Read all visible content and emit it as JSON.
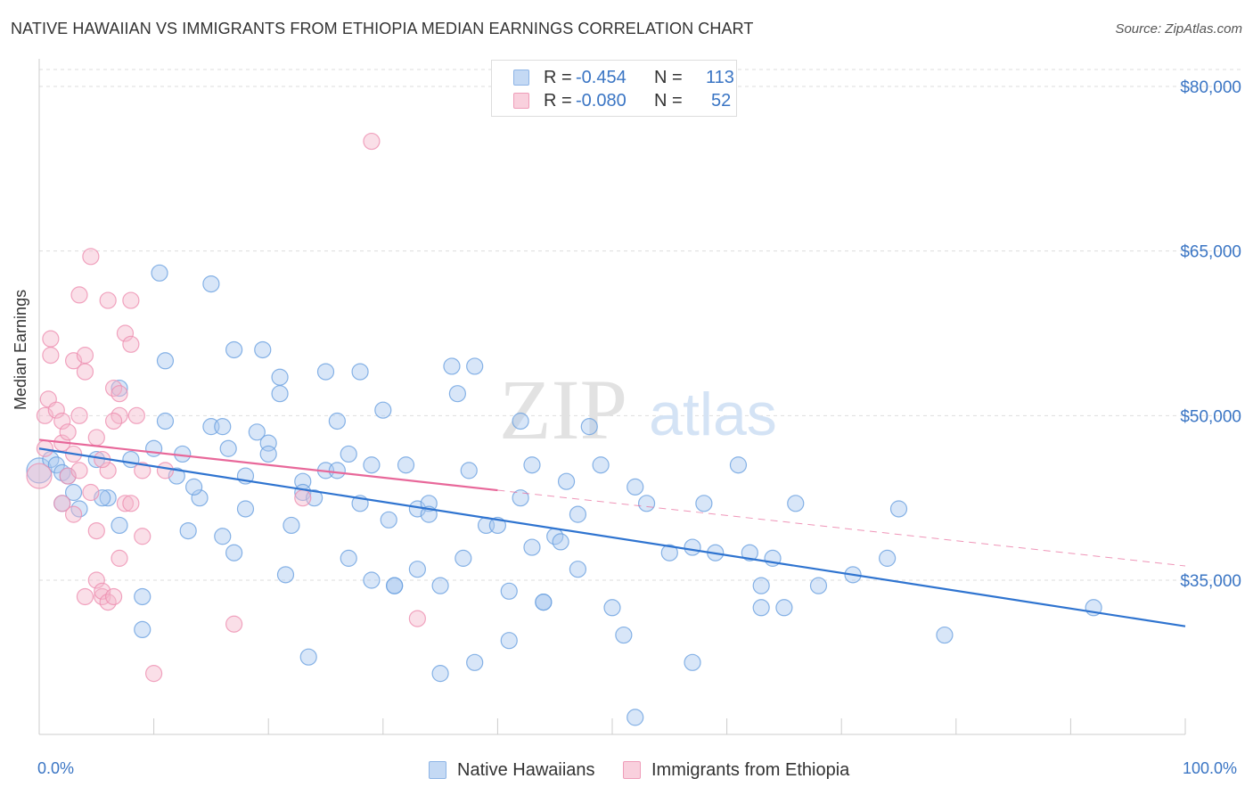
{
  "header": {
    "title": "NATIVE HAWAIIAN VS IMMIGRANTS FROM ETHIOPIA MEDIAN EARNINGS CORRELATION CHART",
    "source": "Source: ZipAtlas.com"
  },
  "watermark": {
    "zip": "ZIP",
    "atlas": "atlas"
  },
  "stats_legend": {
    "rows": [
      {
        "r_label": "R =",
        "r_value": "-0.454",
        "n_label": "N =",
        "n_value": "113",
        "color": "#a8c8f0"
      },
      {
        "r_label": "R =",
        "r_value": "-0.080",
        "n_label": "N =",
        "n_value": "52",
        "color": "#f5b8cb"
      }
    ]
  },
  "chart_data": {
    "type": "scatter",
    "title": "NATIVE HAWAIIAN VS IMMIGRANTS FROM ETHIOPIA MEDIAN EARNINGS CORRELATION CHART",
    "xlabel": "",
    "ylabel": "Median Earnings",
    "xlim": [
      0,
      100
    ],
    "ylim": [
      20000,
      82000
    ],
    "x_tick_labels": [
      "0.0%",
      "100.0%"
    ],
    "y_ticks": [
      35000,
      50000,
      65000,
      80000
    ],
    "y_tick_labels": [
      "$35,000",
      "$50,000",
      "$65,000",
      "$80,000"
    ],
    "grid": "horizontal dashed",
    "legend_position": "bottom-center",
    "series": [
      {
        "name": "Native Hawaiians",
        "color": "#6aa0e0",
        "fill": "#a8c8f0",
        "trend": {
          "x": [
            0,
            100
          ],
          "y": [
            47000,
            30800
          ],
          "solid_until": 100
        },
        "points": [
          [
            0,
            45000
          ],
          [
            1,
            46000
          ],
          [
            1.5,
            45500
          ],
          [
            2,
            44800
          ],
          [
            2,
            42000
          ],
          [
            3,
            43000
          ],
          [
            3.5,
            41500
          ],
          [
            5,
            46000
          ],
          [
            6,
            42500
          ],
          [
            7,
            52500
          ],
          [
            7,
            40000
          ],
          [
            8,
            46000
          ],
          [
            9,
            33500
          ],
          [
            9,
            30500
          ],
          [
            10,
            47000
          ],
          [
            10.5,
            63000
          ],
          [
            11,
            49500
          ],
          [
            11,
            55000
          ],
          [
            12,
            44500
          ],
          [
            12.5,
            46500
          ],
          [
            13,
            39500
          ],
          [
            14,
            42500
          ],
          [
            15,
            62000
          ],
          [
            15,
            49000
          ],
          [
            16,
            39000
          ],
          [
            16,
            49000
          ],
          [
            16.5,
            47000
          ],
          [
            17,
            37500
          ],
          [
            17,
            56000
          ],
          [
            18,
            44500
          ],
          [
            18,
            41500
          ],
          [
            19,
            48500
          ],
          [
            19.5,
            56000
          ],
          [
            20,
            47500
          ],
          [
            20,
            46500
          ],
          [
            21,
            53500
          ],
          [
            21,
            52000
          ],
          [
            21.5,
            35500
          ],
          [
            22,
            40000
          ],
          [
            23,
            44000
          ],
          [
            23,
            43000
          ],
          [
            23.5,
            28000
          ],
          [
            24,
            42500
          ],
          [
            25,
            54000
          ],
          [
            25,
            45000
          ],
          [
            26,
            49500
          ],
          [
            27,
            37000
          ],
          [
            27,
            46500
          ],
          [
            28,
            42000
          ],
          [
            28,
            54000
          ],
          [
            29,
            45500
          ],
          [
            29,
            35000
          ],
          [
            30,
            50500
          ],
          [
            30.5,
            40500
          ],
          [
            31,
            34500
          ],
          [
            31,
            34500
          ],
          [
            32,
            45500
          ],
          [
            33,
            36000
          ],
          [
            33,
            41500
          ],
          [
            34,
            42000
          ],
          [
            34,
            41000
          ],
          [
            35,
            34500
          ],
          [
            35,
            26500
          ],
          [
            36,
            54500
          ],
          [
            36.5,
            52000
          ],
          [
            37,
            37000
          ],
          [
            38,
            27500
          ],
          [
            38,
            54500
          ],
          [
            39,
            40000
          ],
          [
            40,
            40000
          ],
          [
            41,
            34000
          ],
          [
            41,
            29500
          ],
          [
            42,
            49500
          ],
          [
            42,
            42500
          ],
          [
            43,
            45500
          ],
          [
            43,
            38000
          ],
          [
            44,
            33000
          ],
          [
            44,
            33000
          ],
          [
            45,
            39000
          ],
          [
            46,
            44000
          ],
          [
            47,
            41000
          ],
          [
            47,
            36000
          ],
          [
            48,
            49000
          ],
          [
            49,
            45500
          ],
          [
            50,
            32500
          ],
          [
            51,
            30000
          ],
          [
            52,
            43500
          ],
          [
            52,
            22500
          ],
          [
            53,
            42000
          ],
          [
            55,
            37500
          ],
          [
            57,
            27500
          ],
          [
            57,
            38000
          ],
          [
            58,
            42000
          ],
          [
            59,
            37500
          ],
          [
            61,
            45500
          ],
          [
            62,
            37500
          ],
          [
            63,
            32500
          ],
          [
            63,
            34500
          ],
          [
            64,
            37000
          ],
          [
            65,
            32500
          ],
          [
            66,
            42000
          ],
          [
            68,
            34500
          ],
          [
            71,
            35500
          ],
          [
            74,
            37000
          ],
          [
            75,
            41500
          ],
          [
            79,
            30000
          ],
          [
            92,
            32500
          ],
          [
            2.5,
            44500
          ],
          [
            13.5,
            43500
          ],
          [
            26,
            45000
          ],
          [
            37.5,
            45000
          ],
          [
            45.5,
            38500
          ],
          [
            5.5,
            42500
          ]
        ]
      },
      {
        "name": "Immigrants from Ethiopia",
        "color": "#ee8fb0",
        "fill": "#f5b8cb",
        "trend": {
          "x": [
            0,
            100
          ],
          "y": [
            47800,
            36300
          ],
          "solid_until": 40
        },
        "points": [
          [
            0,
            44500
          ],
          [
            0.5,
            47000
          ],
          [
            0.5,
            50000
          ],
          [
            0.8,
            51500
          ],
          [
            1,
            55500
          ],
          [
            1,
            57000
          ],
          [
            1.5,
            50500
          ],
          [
            2,
            49500
          ],
          [
            2,
            47500
          ],
          [
            2.5,
            48500
          ],
          [
            2.5,
            44500
          ],
          [
            3,
            41000
          ],
          [
            3,
            55000
          ],
          [
            3.5,
            50000
          ],
          [
            3.5,
            45000
          ],
          [
            3.5,
            61000
          ],
          [
            4,
            55500
          ],
          [
            4,
            54000
          ],
          [
            4,
            33500
          ],
          [
            4.5,
            64500
          ],
          [
            4.5,
            43000
          ],
          [
            5,
            48000
          ],
          [
            5,
            35000
          ],
          [
            5,
            39500
          ],
          [
            5.5,
            33500
          ],
          [
            5.5,
            34000
          ],
          [
            6,
            60500
          ],
          [
            6,
            45000
          ],
          [
            6,
            33000
          ],
          [
            6.5,
            52500
          ],
          [
            6.5,
            33500
          ],
          [
            7,
            37000
          ],
          [
            7,
            50000
          ],
          [
            7,
            52000
          ],
          [
            7.5,
            57500
          ],
          [
            7.5,
            42000
          ],
          [
            8,
            56500
          ],
          [
            8,
            60500
          ],
          [
            8,
            42000
          ],
          [
            8.5,
            50000
          ],
          [
            9,
            39000
          ],
          [
            9,
            45000
          ],
          [
            10,
            26500
          ],
          [
            11,
            45000
          ],
          [
            17,
            31000
          ],
          [
            23,
            42500
          ],
          [
            29,
            75000
          ],
          [
            33,
            31500
          ],
          [
            2,
            42000
          ],
          [
            6.5,
            49500
          ],
          [
            3,
            46500
          ],
          [
            5.5,
            46000
          ]
        ]
      }
    ]
  },
  "bottom_legend": {
    "items": [
      {
        "label": "Native Hawaiians",
        "color": "#a8c8f0"
      },
      {
        "label": "Immigrants from Ethiopia",
        "color": "#f5b8cb"
      }
    ]
  }
}
